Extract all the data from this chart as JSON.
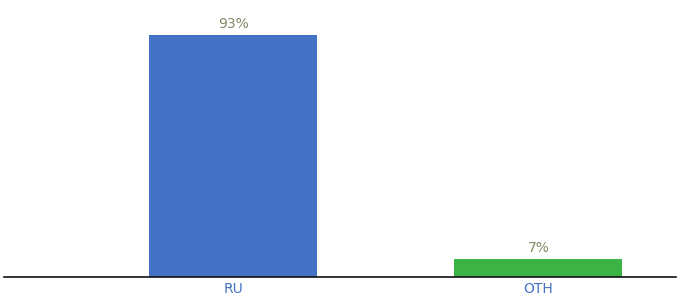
{
  "categories": [
    "RU",
    "OTH"
  ],
  "values": [
    93,
    7
  ],
  "bar_colors": [
    "#4472c4",
    "#3cb344"
  ],
  "labels": [
    "93%",
    "7%"
  ],
  "background_color": "#ffffff",
  "label_color": "#888866",
  "axis_line_color": "#111111",
  "tick_label_color": "#4472c4",
  "ylim": [
    0,
    105
  ],
  "bar_width": 0.55,
  "xlim": [
    -0.45,
    1.75
  ],
  "x_positions": [
    0.3,
    1.3
  ]
}
